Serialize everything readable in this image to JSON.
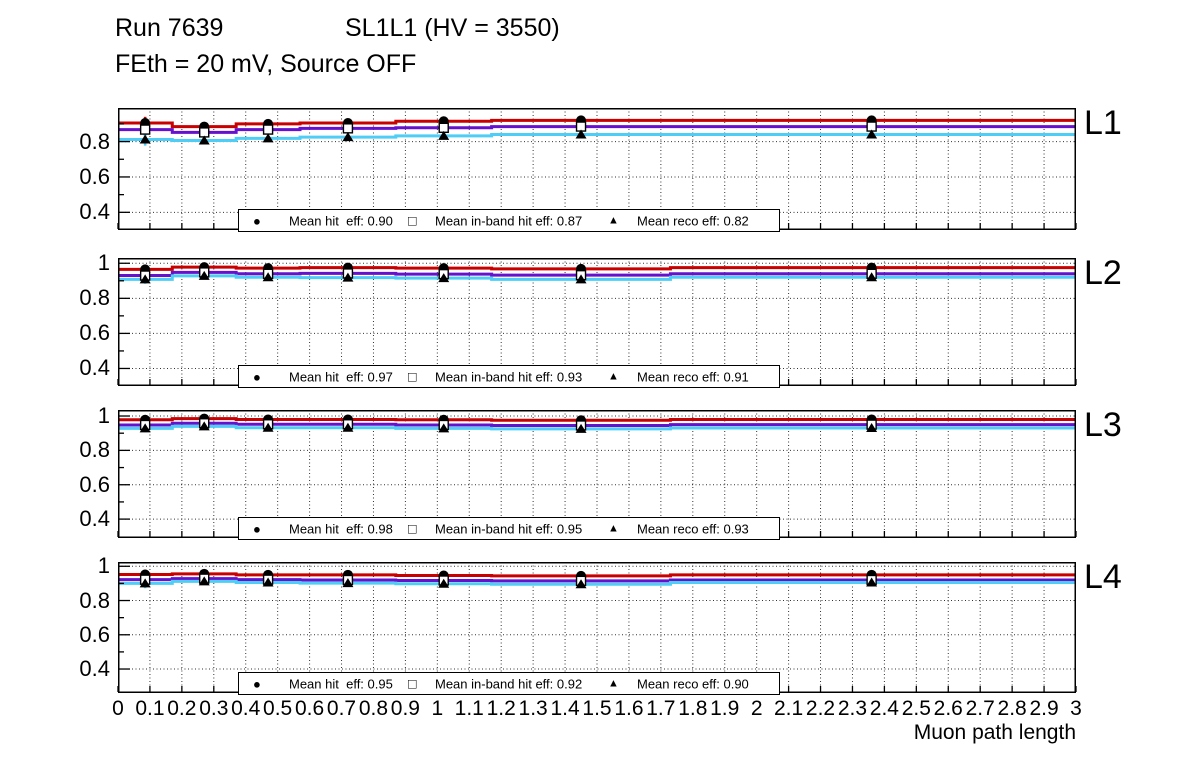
{
  "title": {
    "run": "Run 7639",
    "chamber": "SL1L1 (HV = 3550)",
    "conditions": "FEth = 20 mV, Source OFF"
  },
  "x_axis": {
    "label": "Muon path length",
    "range": [
      0,
      3
    ],
    "tick_labels": [
      "0",
      "0.1",
      "0.2",
      "0.3",
      "0.4",
      "0.5",
      "0.6",
      "0.7",
      "0.8",
      "0.9",
      "1",
      "1.1",
      "1.2",
      "1.3",
      "1.4",
      "1.5",
      "1.6",
      "1.7",
      "1.8",
      "1.9",
      "2",
      "2.1",
      "2.2",
      "2.3",
      "2.4",
      "2.5",
      "2.6",
      "2.7",
      "2.8",
      "2.9",
      "3"
    ]
  },
  "colors": {
    "hit": "#c80000",
    "inband": "#6611cc",
    "reco": "#4ecdf6",
    "marker": "#000000",
    "grid": "#000000",
    "frame": "#000000"
  },
  "legend_icons": {
    "hit": "●",
    "inband": "□",
    "reco": "▲"
  },
  "panels": [
    {
      "name": "L1",
      "y_tick_labels": [
        "0.8",
        "0.6",
        "0.4"
      ],
      "legend": {
        "entries": [
          {
            "label": "Mean hit  eff: 0.90"
          },
          {
            "label": "Mean in-band hit eff: 0.87"
          },
          {
            "label": "Mean reco eff: 0.82"
          }
        ]
      }
    },
    {
      "name": "L2",
      "y_tick_labels": [
        "1",
        "0.8",
        "0.6",
        "0.4"
      ],
      "legend": {
        "entries": [
          {
            "label": "Mean hit  eff: 0.97"
          },
          {
            "label": "Mean in-band hit eff: 0.93"
          },
          {
            "label": "Mean reco eff: 0.91"
          }
        ]
      }
    },
    {
      "name": "L3",
      "y_tick_labels": [
        "1",
        "0.8",
        "0.6",
        "0.4"
      ],
      "legend": {
        "entries": [
          {
            "label": "Mean hit  eff: 0.98"
          },
          {
            "label": "Mean in-band hit eff: 0.95"
          },
          {
            "label": "Mean reco eff: 0.93"
          }
        ]
      }
    },
    {
      "name": "L4",
      "y_tick_labels": [
        "1",
        "0.8",
        "0.6",
        "0.4"
      ],
      "legend": {
        "entries": [
          {
            "label": "Mean hit  eff: 0.95"
          },
          {
            "label": "Mean in-band hit eff: 0.92"
          },
          {
            "label": "Mean reco eff: 0.90"
          }
        ]
      }
    }
  ],
  "chart_data": [
    {
      "type": "line",
      "style": "step-histogram",
      "panel": "L1",
      "xlabel": "Muon path length",
      "xlim": [
        0,
        3
      ],
      "ylim": [
        0.3,
        0.99
      ],
      "grid": true,
      "legend_position": "bottom-center",
      "y_ticks": [
        0.8,
        0.6,
        0.4
      ],
      "bin_edges": [
        0,
        0.17,
        0.37,
        0.57,
        0.87,
        1.17,
        1.73,
        3.0
      ],
      "bin_centers": [
        0.085,
        0.27,
        0.47,
        0.72,
        1.02,
        1.45,
        2.36
      ],
      "errors": [
        0.035,
        0.022,
        0.015,
        0.012,
        0.01,
        0.008,
        0.012
      ],
      "series": [
        {
          "name": "hit-eff",
          "mean": 0.9,
          "marker": "filled-circle",
          "color": "#c80000",
          "values": [
            0.905,
            0.885,
            0.9,
            0.905,
            0.915,
            0.92,
            0.92
          ]
        },
        {
          "name": "in-band-hit-eff",
          "mean": 0.87,
          "marker": "open-square",
          "color": "#6611cc",
          "values": [
            0.868,
            0.852,
            0.868,
            0.875,
            0.878,
            0.885,
            0.885
          ]
        },
        {
          "name": "reco-eff",
          "mean": 0.82,
          "marker": "filled-triangle",
          "color": "#4ecdf6",
          "values": [
            0.812,
            0.806,
            0.818,
            0.825,
            0.832,
            0.84,
            0.84
          ]
        }
      ]
    },
    {
      "type": "line",
      "style": "step-histogram",
      "panel": "L2",
      "xlabel": "Muon path length",
      "xlim": [
        0,
        3
      ],
      "ylim": [
        0.3,
        1.03
      ],
      "grid": true,
      "legend_position": "bottom-center",
      "y_ticks": [
        1.0,
        0.8,
        0.6,
        0.4
      ],
      "bin_edges": [
        0,
        0.17,
        0.37,
        0.57,
        0.87,
        1.17,
        1.73,
        3.0
      ],
      "bin_centers": [
        0.085,
        0.27,
        0.47,
        0.72,
        1.02,
        1.45,
        2.36
      ],
      "errors": [
        0.025,
        0.015,
        0.01,
        0.008,
        0.007,
        0.006,
        0.008
      ],
      "series": [
        {
          "name": "hit-eff",
          "mean": 0.97,
          "marker": "filled-circle",
          "color": "#c80000",
          "values": [
            0.965,
            0.978,
            0.972,
            0.975,
            0.972,
            0.968,
            0.975
          ]
        },
        {
          "name": "in-band-hit-eff",
          "mean": 0.93,
          "marker": "open-square",
          "color": "#6611cc",
          "values": [
            0.93,
            0.948,
            0.94,
            0.942,
            0.938,
            0.932,
            0.94
          ]
        },
        {
          "name": "reco-eff",
          "mean": 0.91,
          "marker": "filled-triangle",
          "color": "#4ecdf6",
          "values": [
            0.908,
            0.928,
            0.92,
            0.918,
            0.915,
            0.908,
            0.92
          ]
        }
      ]
    },
    {
      "type": "line",
      "style": "step-histogram",
      "panel": "L3",
      "xlabel": "Muon path length",
      "xlim": [
        0,
        3
      ],
      "ylim": [
        0.29,
        1.035
      ],
      "grid": true,
      "legend_position": "bottom-center",
      "y_ticks": [
        1.0,
        0.8,
        0.6,
        0.4
      ],
      "bin_edges": [
        0,
        0.17,
        0.37,
        0.57,
        0.87,
        1.17,
        1.73,
        3.0
      ],
      "bin_centers": [
        0.085,
        0.27,
        0.47,
        0.72,
        1.02,
        1.45,
        2.36
      ],
      "errors": [
        0.022,
        0.013,
        0.009,
        0.007,
        0.006,
        0.005,
        0.007
      ],
      "series": [
        {
          "name": "hit-eff",
          "mean": 0.98,
          "marker": "filled-circle",
          "color": "#c80000",
          "values": [
            0.978,
            0.985,
            0.98,
            0.98,
            0.978,
            0.975,
            0.98
          ]
        },
        {
          "name": "in-band-hit-eff",
          "mean": 0.95,
          "marker": "open-square",
          "color": "#6611cc",
          "values": [
            0.948,
            0.958,
            0.952,
            0.952,
            0.948,
            0.945,
            0.95
          ]
        },
        {
          "name": "reco-eff",
          "mean": 0.93,
          "marker": "filled-triangle",
          "color": "#4ecdf6",
          "values": [
            0.928,
            0.94,
            0.932,
            0.932,
            0.928,
            0.925,
            0.93
          ]
        }
      ]
    },
    {
      "type": "line",
      "style": "step-histogram",
      "panel": "L4",
      "xlabel": "Muon path length",
      "xlim": [
        0,
        3
      ],
      "ylim": [
        0.26,
        1.025
      ],
      "grid": true,
      "legend_position": "bottom-center",
      "y_ticks": [
        1.0,
        0.8,
        0.6,
        0.4
      ],
      "bin_edges": [
        0,
        0.17,
        0.37,
        0.57,
        0.87,
        1.17,
        1.73,
        3.0
      ],
      "bin_centers": [
        0.085,
        0.27,
        0.47,
        0.72,
        1.02,
        1.45,
        2.36
      ],
      "errors": [
        0.028,
        0.016,
        0.011,
        0.009,
        0.008,
        0.006,
        0.009
      ],
      "series": [
        {
          "name": "hit-eff",
          "mean": 0.95,
          "marker": "filled-circle",
          "color": "#c80000",
          "values": [
            0.952,
            0.956,
            0.95,
            0.95,
            0.946,
            0.944,
            0.95
          ]
        },
        {
          "name": "in-band-hit-eff",
          "mean": 0.92,
          "marker": "open-square",
          "color": "#6611cc",
          "values": [
            0.922,
            0.928,
            0.922,
            0.92,
            0.917,
            0.915,
            0.92
          ]
        },
        {
          "name": "reco-eff",
          "mean": 0.9,
          "marker": "filled-triangle",
          "color": "#4ecdf6",
          "values": [
            0.9,
            0.912,
            0.905,
            0.902,
            0.898,
            0.895,
            0.905
          ]
        }
      ]
    }
  ]
}
